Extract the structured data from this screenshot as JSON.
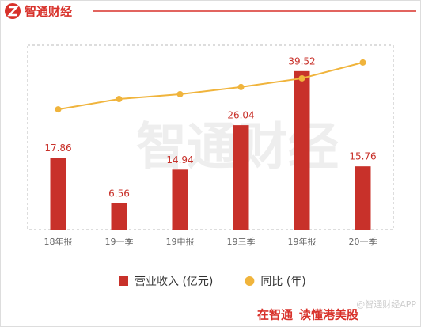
{
  "header": {
    "brand": "智通财经"
  },
  "chart_data": {
    "type": "bar",
    "watermark": "智通财经",
    "categories": [
      "18年报",
      "19一季",
      "19中报",
      "19三季",
      "19年报",
      "20一季"
    ],
    "series": [
      {
        "name": "营业收入 (亿元)",
        "type": "bar",
        "color": "#c8312a",
        "values": [
          17.86,
          6.56,
          14.94,
          26.04,
          39.52,
          15.76
        ]
      },
      {
        "name": "同比 (年)",
        "type": "line",
        "axis": "y2",
        "color": "#f0b43c",
        "values": [
          65.2,
          70.8,
          73.4,
          77.3,
          82.0,
          90.6
        ]
      }
    ],
    "ylim": [
      0,
      46
    ],
    "y2lim": [
      0,
      100
    ],
    "legend": "bottom"
  },
  "footer": {
    "slogan": [
      "在智通",
      "读懂港美股"
    ],
    "handle": "@智通财经APP"
  }
}
